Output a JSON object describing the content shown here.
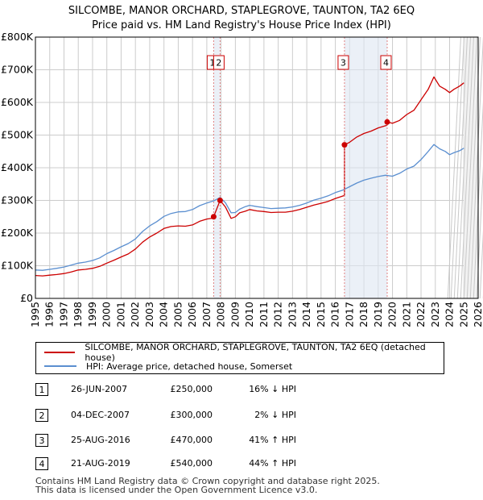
{
  "chart_data": {
    "type": "line",
    "title": "SILCOMBE, MANOR ORCHARD, STAPLEGROVE, TAUNTON, TA2 6EQ",
    "subtitle": "Price paid vs. HM Land Registry's House Price Index (HPI)",
    "xlabel": "",
    "ylabel": "",
    "xlim": [
      1995,
      2026
    ],
    "ylim": [
      0,
      800000
    ],
    "y_ticks": [
      {
        "value": 0,
        "label": "£0"
      },
      {
        "value": 100000,
        "label": "£100K"
      },
      {
        "value": 200000,
        "label": "£200K"
      },
      {
        "value": 300000,
        "label": "£300K"
      },
      {
        "value": 400000,
        "label": "£400K"
      },
      {
        "value": 500000,
        "label": "£500K"
      },
      {
        "value": 600000,
        "label": "£600K"
      },
      {
        "value": 700000,
        "label": "£700K"
      },
      {
        "value": 800000,
        "label": "£800K"
      }
    ],
    "x_ticks": [
      "1995",
      "1996",
      "1997",
      "1998",
      "1999",
      "2000",
      "2001",
      "2002",
      "2003",
      "2004",
      "2005",
      "2006",
      "2007",
      "2008",
      "2009",
      "2010",
      "2011",
      "2012",
      "2013",
      "2014",
      "2015",
      "2016",
      "2017",
      "2018",
      "2019",
      "2020",
      "2021",
      "2022",
      "2023",
      "2024",
      "2025",
      "2026"
    ],
    "grid": true,
    "forecast_start": 2025.0,
    "series": [
      {
        "name": "SILCOMBE, MANOR ORCHARD, STAPLEGROVE, TAUNTON, TA2 6EQ (detached house)",
        "color": "#cc0000",
        "x": [
          1995.0,
          1995.5,
          1996.0,
          1996.5,
          1997.0,
          1997.5,
          1998.0,
          1998.5,
          1999.0,
          1999.5,
          2000.0,
          2000.5,
          2001.0,
          2001.5,
          2002.0,
          2002.5,
          2003.0,
          2003.5,
          2004.0,
          2004.5,
          2005.0,
          2005.5,
          2006.0,
          2006.5,
          2007.0,
          2007.48,
          2007.48,
          2007.93,
          2008.3,
          2008.7,
          2009.0,
          2009.3,
          2009.7,
          2010.0,
          2010.5,
          2011.0,
          2011.5,
          2012.0,
          2012.5,
          2013.0,
          2013.5,
          2014.0,
          2014.5,
          2015.0,
          2015.5,
          2016.0,
          2016.64,
          2016.64,
          2017.0,
          2017.5,
          2018.0,
          2018.5,
          2019.0,
          2019.63,
          2019.63,
          2020.0,
          2020.5,
          2021.0,
          2021.5,
          2022.0,
          2022.5,
          2022.9,
          2023.3,
          2023.7,
          2024.0,
          2024.3,
          2024.7,
          2025.0
        ],
        "y": [
          70000,
          69000,
          71000,
          73000,
          76000,
          81000,
          87000,
          89000,
          92000,
          98000,
          108000,
          117000,
          127000,
          136000,
          151000,
          172000,
          188000,
          200000,
          214000,
          220000,
          222000,
          221000,
          225000,
          236000,
          243000,
          246000,
          250000,
          300000,
          280000,
          245000,
          250000,
          262000,
          267000,
          272000,
          268000,
          266000,
          263000,
          264000,
          264000,
          267000,
          272000,
          279000,
          286000,
          291000,
          297000,
          306000,
          315000,
          470000,
          478000,
          494000,
          505000,
          512000,
          522000,
          530000,
          540000,
          536000,
          545000,
          563000,
          576000,
          608000,
          640000,
          678000,
          650000,
          640000,
          630000,
          640000,
          650000,
          660000
        ]
      },
      {
        "name": "HPI: Average price, detached house, Somerset",
        "color": "#5b8fd0",
        "x": [
          1995.0,
          1995.5,
          1996.0,
          1996.5,
          1997.0,
          1997.5,
          1998.0,
          1998.5,
          1999.0,
          1999.5,
          2000.0,
          2000.5,
          2001.0,
          2001.5,
          2002.0,
          2002.5,
          2003.0,
          2003.5,
          2004.0,
          2004.5,
          2005.0,
          2005.5,
          2006.0,
          2006.5,
          2007.0,
          2007.5,
          2007.93,
          2008.3,
          2008.7,
          2009.0,
          2009.3,
          2009.7,
          2010.0,
          2010.5,
          2011.0,
          2011.5,
          2012.0,
          2012.5,
          2013.0,
          2013.5,
          2014.0,
          2014.5,
          2015.0,
          2015.5,
          2016.0,
          2016.5,
          2017.0,
          2017.5,
          2018.0,
          2018.5,
          2019.0,
          2019.5,
          2020.0,
          2020.5,
          2021.0,
          2021.5,
          2022.0,
          2022.5,
          2022.9,
          2023.3,
          2023.7,
          2024.0,
          2024.3,
          2024.7,
          2025.0
        ],
        "y": [
          87000,
          86000,
          89000,
          92000,
          96000,
          102000,
          108000,
          111000,
          116000,
          124000,
          137000,
          147000,
          158000,
          168000,
          182000,
          205000,
          222000,
          235000,
          251000,
          260000,
          265000,
          266000,
          272000,
          284000,
          292000,
          299000,
          309000,
          293000,
          262000,
          263000,
          273000,
          281000,
          285000,
          281000,
          278000,
          275000,
          276000,
          277000,
          280000,
          285000,
          292000,
          301000,
          307000,
          314000,
          324000,
          331000,
          342000,
          353000,
          362000,
          368000,
          373000,
          377000,
          374000,
          383000,
          396000,
          405000,
          425000,
          450000,
          471000,
          458000,
          450000,
          440000,
          446000,
          452000,
          460000
        ]
      }
    ],
    "markers": [
      {
        "label": "1",
        "x": 2007.48,
        "y": 250000
      },
      {
        "label": "2",
        "x": 2007.93,
        "y": 300000
      },
      {
        "label": "3",
        "x": 2016.64,
        "y": 470000
      },
      {
        "label": "4",
        "x": 2019.63,
        "y": 540000
      }
    ]
  },
  "legend": {
    "property": "SILCOMBE, MANOR ORCHARD, STAPLEGROVE, TAUNTON, TA2 6EQ (detached house)",
    "hpi": "HPI: Average price, detached house, Somerset"
  },
  "transactions": [
    {
      "num": "1",
      "date": "26-JUN-2007",
      "price": "£250,000",
      "hpi": "16% ↓ HPI"
    },
    {
      "num": "2",
      "date": "04-DEC-2007",
      "price": "£300,000",
      "hpi": "2% ↓ HPI"
    },
    {
      "num": "3",
      "date": "25-AUG-2016",
      "price": "£470,000",
      "hpi": "41% ↑ HPI"
    },
    {
      "num": "4",
      "date": "21-AUG-2019",
      "price": "£540,000",
      "hpi": "44% ↑ HPI"
    }
  ],
  "footer": {
    "line1": "Contains HM Land Registry data © Crown copyright and database right 2025.",
    "line2": "This data is licensed under the Open Government Licence v3.0."
  },
  "colors": {
    "property": "#cc0000",
    "hpi": "#5b8fd0",
    "grid": "#cccccc",
    "marker_line": "#e08080",
    "shade": "#dde6f2"
  }
}
